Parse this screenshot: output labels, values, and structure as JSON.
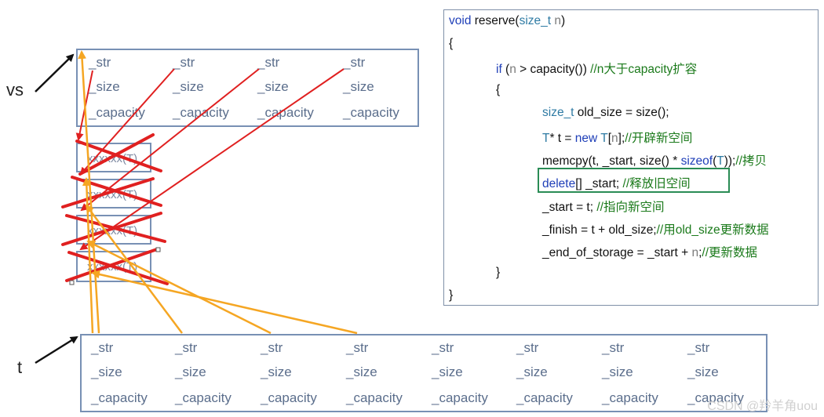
{
  "labels": {
    "vs": "vs",
    "t": "t"
  },
  "field_names": [
    "_str",
    "_size",
    "_capacity"
  ],
  "old_strings_label": "xxxxxx(T)",
  "code": {
    "lines": [
      [
        {
          "t": "void",
          "c": "kw"
        },
        {
          "t": " reserve("
        },
        {
          "t": "size_t",
          "c": "ty"
        },
        {
          "t": " "
        },
        {
          "t": "n",
          "c": "prm"
        },
        {
          "t": ")"
        }
      ],
      [
        {
          "t": "{"
        }
      ],
      [
        {
          "t": "if",
          "c": "kw"
        },
        {
          "t": " ("
        },
        {
          "t": "n",
          "c": "prm"
        },
        {
          "t": " > capacity()) "
        },
        {
          "t": "//n大于capacity扩容",
          "c": "cm"
        }
      ],
      [
        {
          "t": "{"
        }
      ],
      [
        {
          "t": "size_t",
          "c": "ty"
        },
        {
          "t": " old_size = size();"
        }
      ],
      [
        {
          "t": "T",
          "c": "ty"
        },
        {
          "t": "* t = "
        },
        {
          "t": "new",
          "c": "kw"
        },
        {
          "t": " "
        },
        {
          "t": "T",
          "c": "ty"
        },
        {
          "t": "["
        },
        {
          "t": "n",
          "c": "prm"
        },
        {
          "t": "];"
        },
        {
          "t": "//开辟新空间",
          "c": "cm"
        }
      ],
      [
        {
          "t": "memcpy(t, _start, size() * "
        },
        {
          "t": "sizeof",
          "c": "kw"
        },
        {
          "t": "("
        },
        {
          "t": "T",
          "c": "ty"
        },
        {
          "t": "));"
        },
        {
          "t": "//拷贝",
          "c": "cm"
        }
      ],
      [
        {
          "t": "delete",
          "c": "kw"
        },
        {
          "t": "[] _start; "
        },
        {
          "t": "//释放旧空间",
          "c": "cm"
        }
      ],
      [
        {
          "t": "_start = t; "
        },
        {
          "t": "//指向新空间",
          "c": "cm"
        }
      ],
      [
        {
          "t": "_finish = t + old_size;"
        },
        {
          "t": "//用old_size更新数据",
          "c": "cm"
        }
      ],
      [
        {
          "t": "_end_of_storage = _start + "
        },
        {
          "t": "n",
          "c": "prm"
        },
        {
          "t": ";"
        },
        {
          "t": "//更新数据",
          "c": "cm"
        }
      ],
      [
        {
          "t": "}"
        }
      ],
      [
        {
          "t": "}"
        }
      ]
    ]
  },
  "watermark": "CSDN @羚羊角uou",
  "colors": {
    "box_border": "#7890b4",
    "red_arrow": "#e02020",
    "orange_arrow": "#f5a623",
    "highlight": "#2a8c55"
  }
}
